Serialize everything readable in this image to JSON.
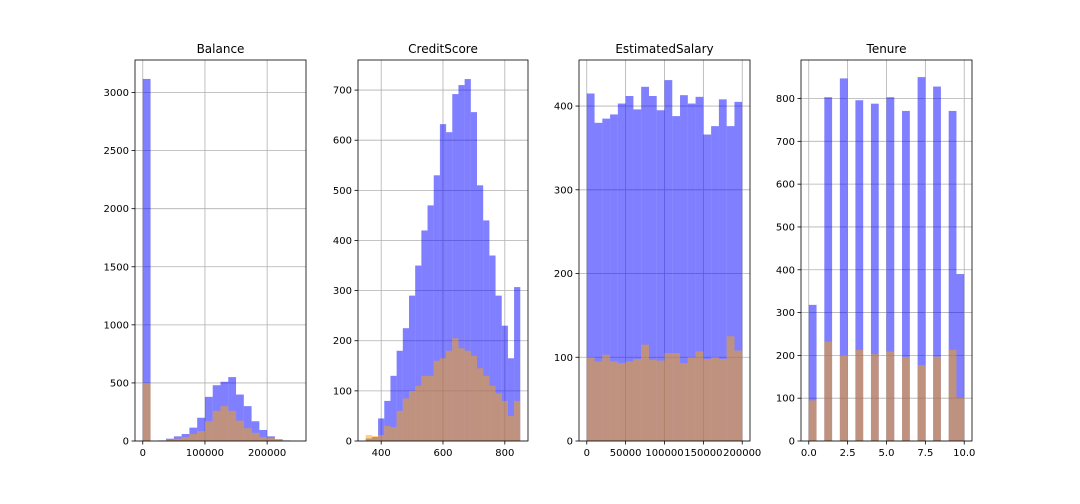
{
  "chart_data": [
    {
      "type": "bar",
      "title": "Balance",
      "xlim": [
        -12500,
        262500
      ],
      "ylim": [
        0,
        3280
      ],
      "xticks": [
        0,
        100000,
        200000
      ],
      "xtick_labels": [
        "0",
        "100000",
        "200000"
      ],
      "yticks": [
        0,
        500,
        1000,
        1500,
        2000,
        2500,
        3000
      ],
      "ytick_labels": [
        "0",
        "500",
        "1000",
        "1500",
        "2000",
        "2500",
        "3000"
      ],
      "grid": true,
      "bin_width": 12500,
      "series": [
        {
          "color": "#0000ff",
          "opacity": 0.5,
          "bins": [
            [
              0,
              3117
            ],
            [
              12500,
              0
            ],
            [
              25000,
              5
            ],
            [
              37500,
              20
            ],
            [
              50000,
              40
            ],
            [
              62500,
              60
            ],
            [
              75000,
              115
            ],
            [
              87500,
              200
            ],
            [
              100000,
              380
            ],
            [
              112500,
              480
            ],
            [
              125000,
              510
            ],
            [
              137500,
              550
            ],
            [
              150000,
              400
            ],
            [
              162500,
              300
            ],
            [
              175000,
              170
            ],
            [
              187500,
              95
            ],
            [
              200000,
              40
            ],
            [
              212500,
              15
            ],
            [
              225000,
              5
            ]
          ]
        },
        {
          "color": "#ffa500",
          "opacity": 0.5,
          "bins": [
            [
              0,
              500
            ],
            [
              12500,
              0
            ],
            [
              25000,
              3
            ],
            [
              37500,
              10
            ],
            [
              50000,
              20
            ],
            [
              62500,
              35
            ],
            [
              75000,
              60
            ],
            [
              87500,
              85
            ],
            [
              100000,
              170
            ],
            [
              112500,
              260
            ],
            [
              125000,
              300
            ],
            [
              137500,
              260
            ],
            [
              150000,
              175
            ],
            [
              162500,
              110
            ],
            [
              175000,
              70
            ],
            [
              187500,
              35
            ],
            [
              200000,
              25
            ],
            [
              212500,
              10
            ],
            [
              225000,
              3
            ]
          ]
        }
      ]
    },
    {
      "type": "bar",
      "title": "CreditScore",
      "xlim": [
        325,
        875
      ],
      "ylim": [
        0,
        760
      ],
      "xticks": [
        400,
        600,
        800
      ],
      "xtick_labels": [
        "400",
        "600",
        "800"
      ],
      "yticks": [
        0,
        100,
        200,
        300,
        400,
        500,
        600,
        700
      ],
      "ytick_labels": [
        "0",
        "100",
        "200",
        "300",
        "400",
        "500",
        "600",
        "700"
      ],
      "grid": true,
      "bin_width": 20,
      "series": [
        {
          "color": "#0000ff",
          "opacity": 0.5,
          "bins": [
            [
              350,
              5
            ],
            [
              370,
              8
            ],
            [
              390,
              45
            ],
            [
              410,
              80
            ],
            [
              430,
              130
            ],
            [
              450,
              180
            ],
            [
              470,
              225
            ],
            [
              490,
              290
            ],
            [
              510,
              350
            ],
            [
              530,
              420
            ],
            [
              550,
              470
            ],
            [
              570,
              530
            ],
            [
              590,
              632
            ],
            [
              610,
              616
            ],
            [
              630,
              692
            ],
            [
              650,
              710
            ],
            [
              670,
              722
            ],
            [
              690,
              656
            ],
            [
              710,
              510
            ],
            [
              730,
              440
            ],
            [
              750,
              370
            ],
            [
              770,
              290
            ],
            [
              790,
              230
            ],
            [
              810,
              165
            ],
            [
              830,
              307
            ]
          ]
        },
        {
          "color": "#ffa500",
          "opacity": 0.5,
          "bins": [
            [
              350,
              12
            ],
            [
              370,
              10
            ],
            [
              390,
              12
            ],
            [
              410,
              30
            ],
            [
              430,
              28
            ],
            [
              450,
              60
            ],
            [
              470,
              85
            ],
            [
              490,
              100
            ],
            [
              510,
              110
            ],
            [
              530,
              130
            ],
            [
              550,
              130
            ],
            [
              570,
              160
            ],
            [
              590,
              165
            ],
            [
              610,
              180
            ],
            [
              630,
              205
            ],
            [
              650,
              185
            ],
            [
              670,
              180
            ],
            [
              690,
              170
            ],
            [
              710,
              145
            ],
            [
              730,
              130
            ],
            [
              750,
              110
            ],
            [
              770,
              95
            ],
            [
              790,
              80
            ],
            [
              810,
              50
            ],
            [
              830,
              80
            ]
          ]
        }
      ]
    },
    {
      "type": "bar",
      "title": "EstimatedSalary",
      "xlim": [
        -10000,
        210000
      ],
      "ylim": [
        0,
        455
      ],
      "xticks": [
        0,
        50000,
        100000,
        150000,
        200000
      ],
      "xtick_labels": [
        "0",
        "50000",
        "100000",
        "150000",
        "200000"
      ],
      "yticks": [
        0,
        100,
        200,
        300,
        400
      ],
      "ytick_labels": [
        "0",
        "100",
        "200",
        "300",
        "400"
      ],
      "grid": true,
      "bin_width": 10000,
      "series": [
        {
          "color": "#0000ff",
          "opacity": 0.5,
          "bins": [
            [
              0,
              415
            ],
            [
              10000,
              380
            ],
            [
              20000,
              385
            ],
            [
              30000,
              390
            ],
            [
              40000,
              403
            ],
            [
              50000,
              412
            ],
            [
              60000,
              396
            ],
            [
              70000,
              423
            ],
            [
              80000,
              412
            ],
            [
              90000,
              395
            ],
            [
              100000,
              431
            ],
            [
              110000,
              388
            ],
            [
              120000,
              413
            ],
            [
              130000,
              403
            ],
            [
              140000,
              411
            ],
            [
              150000,
              366
            ],
            [
              160000,
              376
            ],
            [
              170000,
              408
            ],
            [
              180000,
              376
            ],
            [
              190000,
              405
            ]
          ]
        },
        {
          "color": "#ffa500",
          "opacity": 0.5,
          "bins": [
            [
              0,
              100
            ],
            [
              10000,
              95
            ],
            [
              20000,
              103
            ],
            [
              30000,
              95
            ],
            [
              40000,
              93
            ],
            [
              50000,
              95
            ],
            [
              60000,
              98
            ],
            [
              70000,
              115
            ],
            [
              80000,
              97
            ],
            [
              90000,
              96
            ],
            [
              100000,
              105
            ],
            [
              110000,
              105
            ],
            [
              120000,
              93
            ],
            [
              130000,
              100
            ],
            [
              140000,
              107
            ],
            [
              150000,
              98
            ],
            [
              160000,
              100
            ],
            [
              170000,
              98
            ],
            [
              180000,
              125
            ],
            [
              190000,
              108
            ]
          ]
        }
      ]
    },
    {
      "type": "bar",
      "title": "Tenure",
      "xlim": [
        -0.5,
        10.5
      ],
      "ylim": [
        0,
        890
      ],
      "xticks": [
        0,
        2.5,
        5,
        7.5,
        10
      ],
      "xtick_labels": [
        "0.0",
        "2.5",
        "5.0",
        "7.5",
        "10.0"
      ],
      "yticks": [
        0,
        100,
        200,
        300,
        400,
        500,
        600,
        700,
        800
      ],
      "ytick_labels": [
        "0",
        "100",
        "200",
        "300",
        "400",
        "500",
        "600",
        "700",
        "800"
      ],
      "grid": true,
      "bin_width": 0.5,
      "series": [
        {
          "color": "#0000ff",
          "opacity": 0.5,
          "bins": [
            [
              0,
              318
            ],
            [
              0.5,
              0
            ],
            [
              1,
              803
            ],
            [
              1.5,
              0
            ],
            [
              2,
              847
            ],
            [
              2.5,
              0
            ],
            [
              3,
              796
            ],
            [
              3.5,
              0
            ],
            [
              4,
              788
            ],
            [
              4.5,
              0
            ],
            [
              5,
              803
            ],
            [
              5.5,
              0
            ],
            [
              6,
              771
            ],
            [
              6.5,
              0
            ],
            [
              7,
              850
            ],
            [
              7.5,
              0
            ],
            [
              8,
              828
            ],
            [
              8.5,
              0
            ],
            [
              9,
              771
            ],
            [
              9.5,
              390
            ]
          ]
        },
        {
          "color": "#ffa500",
          "opacity": 0.5,
          "bins": [
            [
              0,
              95
            ],
            [
              0.5,
              0
            ],
            [
              1,
              232
            ],
            [
              1.5,
              0
            ],
            [
              2,
              201
            ],
            [
              2.5,
              0
            ],
            [
              3,
              213
            ],
            [
              3.5,
              0
            ],
            [
              4,
              203
            ],
            [
              4.5,
              0
            ],
            [
              5,
              209
            ],
            [
              5.5,
              0
            ],
            [
              6,
              196
            ],
            [
              6.5,
              0
            ],
            [
              7,
              177
            ],
            [
              7.5,
              0
            ],
            [
              8,
              197
            ],
            [
              8.5,
              0
            ],
            [
              9,
              213
            ],
            [
              9.5,
              101
            ]
          ]
        }
      ]
    }
  ]
}
